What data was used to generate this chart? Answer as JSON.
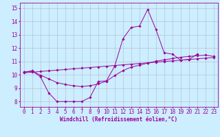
{
  "xlabel": "Windchill (Refroidissement éolien,°C)",
  "background_color": "#cceeff",
  "line_color": "#990099",
  "grid_color": "#b0b8cc",
  "xlim": [
    -0.5,
    23.5
  ],
  "ylim": [
    7.6,
    15.4
  ],
  "xticks": [
    0,
    1,
    2,
    3,
    4,
    5,
    6,
    7,
    8,
    9,
    10,
    11,
    12,
    13,
    14,
    15,
    16,
    17,
    18,
    19,
    20,
    21,
    22,
    23
  ],
  "yticks": [
    8,
    9,
    10,
    11,
    12,
    13,
    14,
    15
  ],
  "series1_y": [
    10.2,
    10.3,
    9.85,
    8.65,
    8.0,
    8.0,
    8.0,
    8.0,
    8.3,
    9.5,
    9.55,
    10.65,
    12.7,
    13.55,
    13.65,
    14.9,
    13.4,
    11.65,
    11.55,
    11.1,
    11.15,
    11.55,
    null,
    null
  ],
  "series2_y": [
    10.2,
    10.28,
    9.98,
    9.7,
    9.42,
    9.28,
    9.18,
    9.12,
    9.18,
    9.32,
    9.52,
    9.95,
    10.32,
    10.58,
    10.72,
    10.88,
    11.02,
    11.12,
    11.22,
    11.32,
    11.38,
    11.43,
    11.48,
    11.38
  ],
  "series3_y": [
    10.15,
    10.2,
    10.25,
    10.3,
    10.35,
    10.4,
    10.45,
    10.5,
    10.55,
    10.6,
    10.65,
    10.7,
    10.75,
    10.8,
    10.85,
    10.9,
    10.95,
    11.0,
    11.05,
    11.1,
    11.15,
    11.2,
    11.25,
    11.3
  ],
  "tick_fontsize": 5.5,
  "xlabel_fontsize": 5.5
}
